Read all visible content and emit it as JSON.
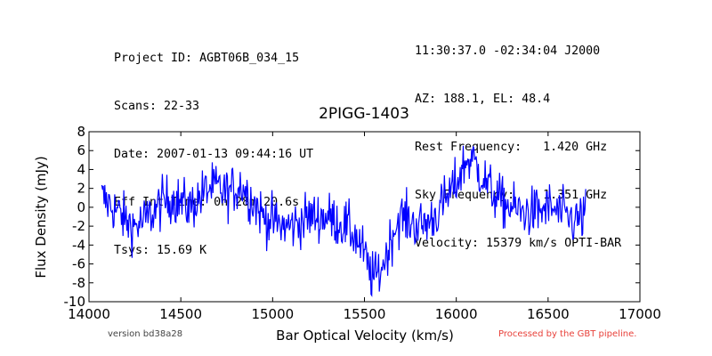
{
  "header_left": [
    "Project ID: AGBT06B_034_15",
    "Scans: 22-33",
    "Date: 2007-01-13 09:44:16 UT",
    "Eff Int Time: 0h 28m 20.6s",
    "Tsys: 15.69 K"
  ],
  "header_right": [
    "11:30:37.0 -02:34:04 J2000",
    "AZ: 188.1, EL: 48.4",
    "Rest Frequency:   1.420 GHz",
    "Sky Frequency:    1.351 GHz",
    "Velocity: 15379 km/s OPTI-BAR"
  ],
  "footer": {
    "version": "version bd38a28",
    "processed": "Processed by the GBT pipeline.",
    "processed_color": "#e8413a"
  },
  "chart_data": {
    "type": "line",
    "title": "2PIGG-1403",
    "xlabel": "Bar Optical Velocity (km/s)",
    "ylabel": "Flux Density (mJy)",
    "xlim": [
      14000,
      17000
    ],
    "ylim": [
      -10,
      8
    ],
    "xticks": [
      14000,
      14500,
      15000,
      15500,
      16000,
      16500,
      17000
    ],
    "yticks": [
      -10,
      -8,
      -6,
      -4,
      -2,
      0,
      2,
      4,
      6,
      8
    ],
    "line_color": "#0000ff",
    "grid": false,
    "series": [
      {
        "x": [
          14070,
          14100,
          14130,
          14160,
          14200,
          14250,
          14300,
          14350,
          14400,
          14450,
          14500,
          14550,
          14600,
          14650,
          14700,
          14750,
          14800,
          14830,
          14860,
          14900,
          14950,
          15000,
          15050,
          15100,
          15150,
          15200,
          15250,
          15300,
          15350,
          15400,
          15450,
          15500,
          15530,
          15560,
          15590,
          15620,
          15650,
          15680,
          15700,
          15750,
          15800,
          15850,
          15900,
          15950,
          16000,
          16030,
          16060,
          16090,
          16120,
          16150,
          16200,
          16250,
          16300,
          16350,
          16400,
          16450,
          16500,
          16550,
          16600,
          16650,
          16690,
          16705
        ],
        "y": [
          1.0,
          0.5,
          0.0,
          -0.5,
          -1.5,
          -2.0,
          -1.5,
          -0.5,
          0.5,
          1.0,
          0.5,
          0.0,
          1.0,
          2.0,
          2.0,
          1.5,
          2.0,
          2.5,
          1.5,
          0.5,
          -1.0,
          -1.5,
          -2.0,
          -2.0,
          -1.5,
          -1.0,
          -1.0,
          -1.0,
          -1.5,
          -2.0,
          -3.0,
          -5.0,
          -7.0,
          -7.5,
          -6.5,
          -5.0,
          -3.0,
          -1.5,
          -1.0,
          -1.5,
          -2.0,
          -1.5,
          -0.5,
          1.0,
          2.5,
          4.0,
          5.0,
          5.0,
          4.0,
          3.0,
          1.5,
          0.5,
          0.0,
          -0.5,
          -0.5,
          -0.5,
          0.0,
          -0.5,
          -1.0,
          -1.5,
          -1.0,
          -0.5
        ]
      }
    ]
  }
}
